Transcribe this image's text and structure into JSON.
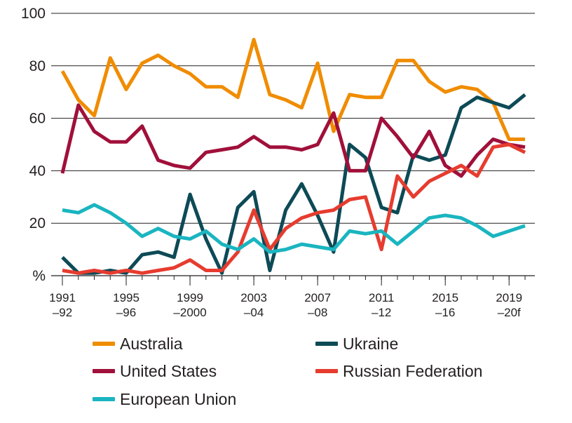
{
  "chart_data": {
    "type": "line",
    "title": "",
    "xlabel": "",
    "ylabel": "%",
    "ylim": [
      0,
      100
    ],
    "yticks": [
      "%",
      "20",
      "40",
      "60",
      "80",
      "100"
    ],
    "x_year_count": 30,
    "x_tick_labels": [
      {
        "index": 0,
        "top": "1991",
        "bottom": "–92"
      },
      {
        "index": 4,
        "top": "1995",
        "bottom": "–96"
      },
      {
        "index": 8,
        "top": "1999",
        "bottom": "–2000"
      },
      {
        "index": 12,
        "top": "2003",
        "bottom": "–04"
      },
      {
        "index": 16,
        "top": "2007",
        "bottom": "–08"
      },
      {
        "index": 20,
        "top": "2011",
        "bottom": "–12"
      },
      {
        "index": 24,
        "top": "2015",
        "bottom": "–16"
      },
      {
        "index": 28,
        "top": "2019",
        "bottom": "–20f"
      }
    ],
    "series": [
      {
        "name": "Australia",
        "color": "#f08c00",
        "values": [
          78,
          67,
          61,
          83,
          71,
          81,
          84,
          80,
          77,
          72,
          72,
          68,
          90,
          69,
          67,
          64,
          81,
          55,
          69,
          68,
          68,
          82,
          82,
          74,
          70,
          72,
          71,
          66,
          52,
          52
        ]
      },
      {
        "name": "Ukraine",
        "color": "#0d4a56",
        "values": [
          7,
          1,
          1,
          2,
          1,
          8,
          9,
          7,
          31,
          14,
          1,
          26,
          32,
          2,
          25,
          35,
          23,
          9,
          50,
          45,
          26,
          24,
          46,
          44,
          46,
          64,
          68,
          66,
          64,
          69
        ]
      },
      {
        "name": "United States",
        "color": "#a0103a",
        "values": [
          39,
          65,
          55,
          51,
          51,
          57,
          44,
          42,
          41,
          47,
          48,
          49,
          53,
          49,
          49,
          48,
          50,
          62,
          40,
          40,
          60,
          53,
          45,
          55,
          42,
          38,
          46,
          52,
          50,
          49
        ]
      },
      {
        "name": "Russian Federation",
        "color": "#e63c2f",
        "values": [
          2,
          1,
          2,
          1,
          2,
          1,
          2,
          3,
          6,
          2,
          2,
          9,
          25,
          10,
          18,
          22,
          24,
          25,
          29,
          30,
          10,
          38,
          30,
          36,
          39,
          42,
          38,
          49,
          50,
          47
        ]
      },
      {
        "name": "European Union",
        "color": "#1ab5c0",
        "values": [
          25,
          24,
          27,
          24,
          20,
          15,
          18,
          15,
          14,
          17,
          12,
          10,
          14,
          9,
          10,
          12,
          11,
          10,
          17,
          16,
          17,
          12,
          17,
          22,
          23,
          22,
          19,
          15,
          17,
          19
        ]
      }
    ]
  },
  "legend": {
    "items": [
      {
        "label": "Australia",
        "color": "#f08c00"
      },
      {
        "label": "Ukraine",
        "color": "#0d4a56"
      },
      {
        "label": "United States",
        "color": "#a0103a"
      },
      {
        "label": "Russian Federation",
        "color": "#e63c2f"
      },
      {
        "label": "European Union",
        "color": "#1ab5c0"
      }
    ]
  }
}
